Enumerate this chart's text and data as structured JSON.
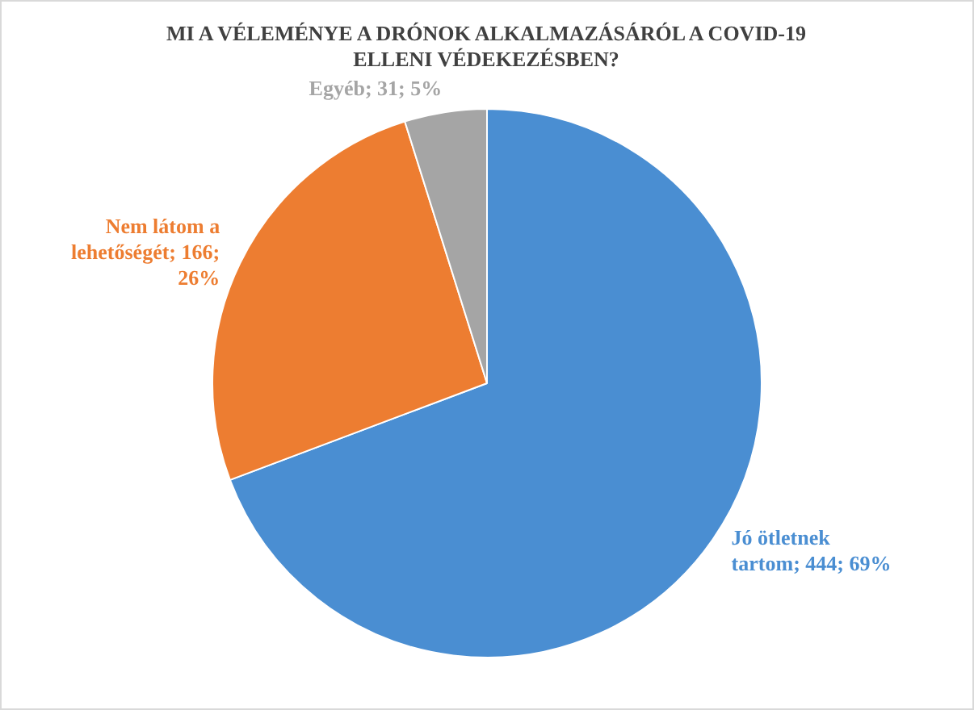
{
  "chart_data": {
    "type": "pie",
    "title": "MI A VÉLEMÉNYE A DRÓNOK ALKALMAZÁSÁRÓL A COVID-19 ELLENI VÉDEKEZÉSBEN?",
    "categories": [
      "Jó ötletnek tartom",
      "Nem látom a lehetőségét",
      "Egyéb"
    ],
    "values": [
      444,
      166,
      31
    ],
    "colors": [
      "#4a8ed2",
      "#ed7d31",
      "#a5a5a5"
    ],
    "value_labels": [
      "444; 69%",
      "166; 26%",
      "31; 5%"
    ],
    "legend": false
  }
}
